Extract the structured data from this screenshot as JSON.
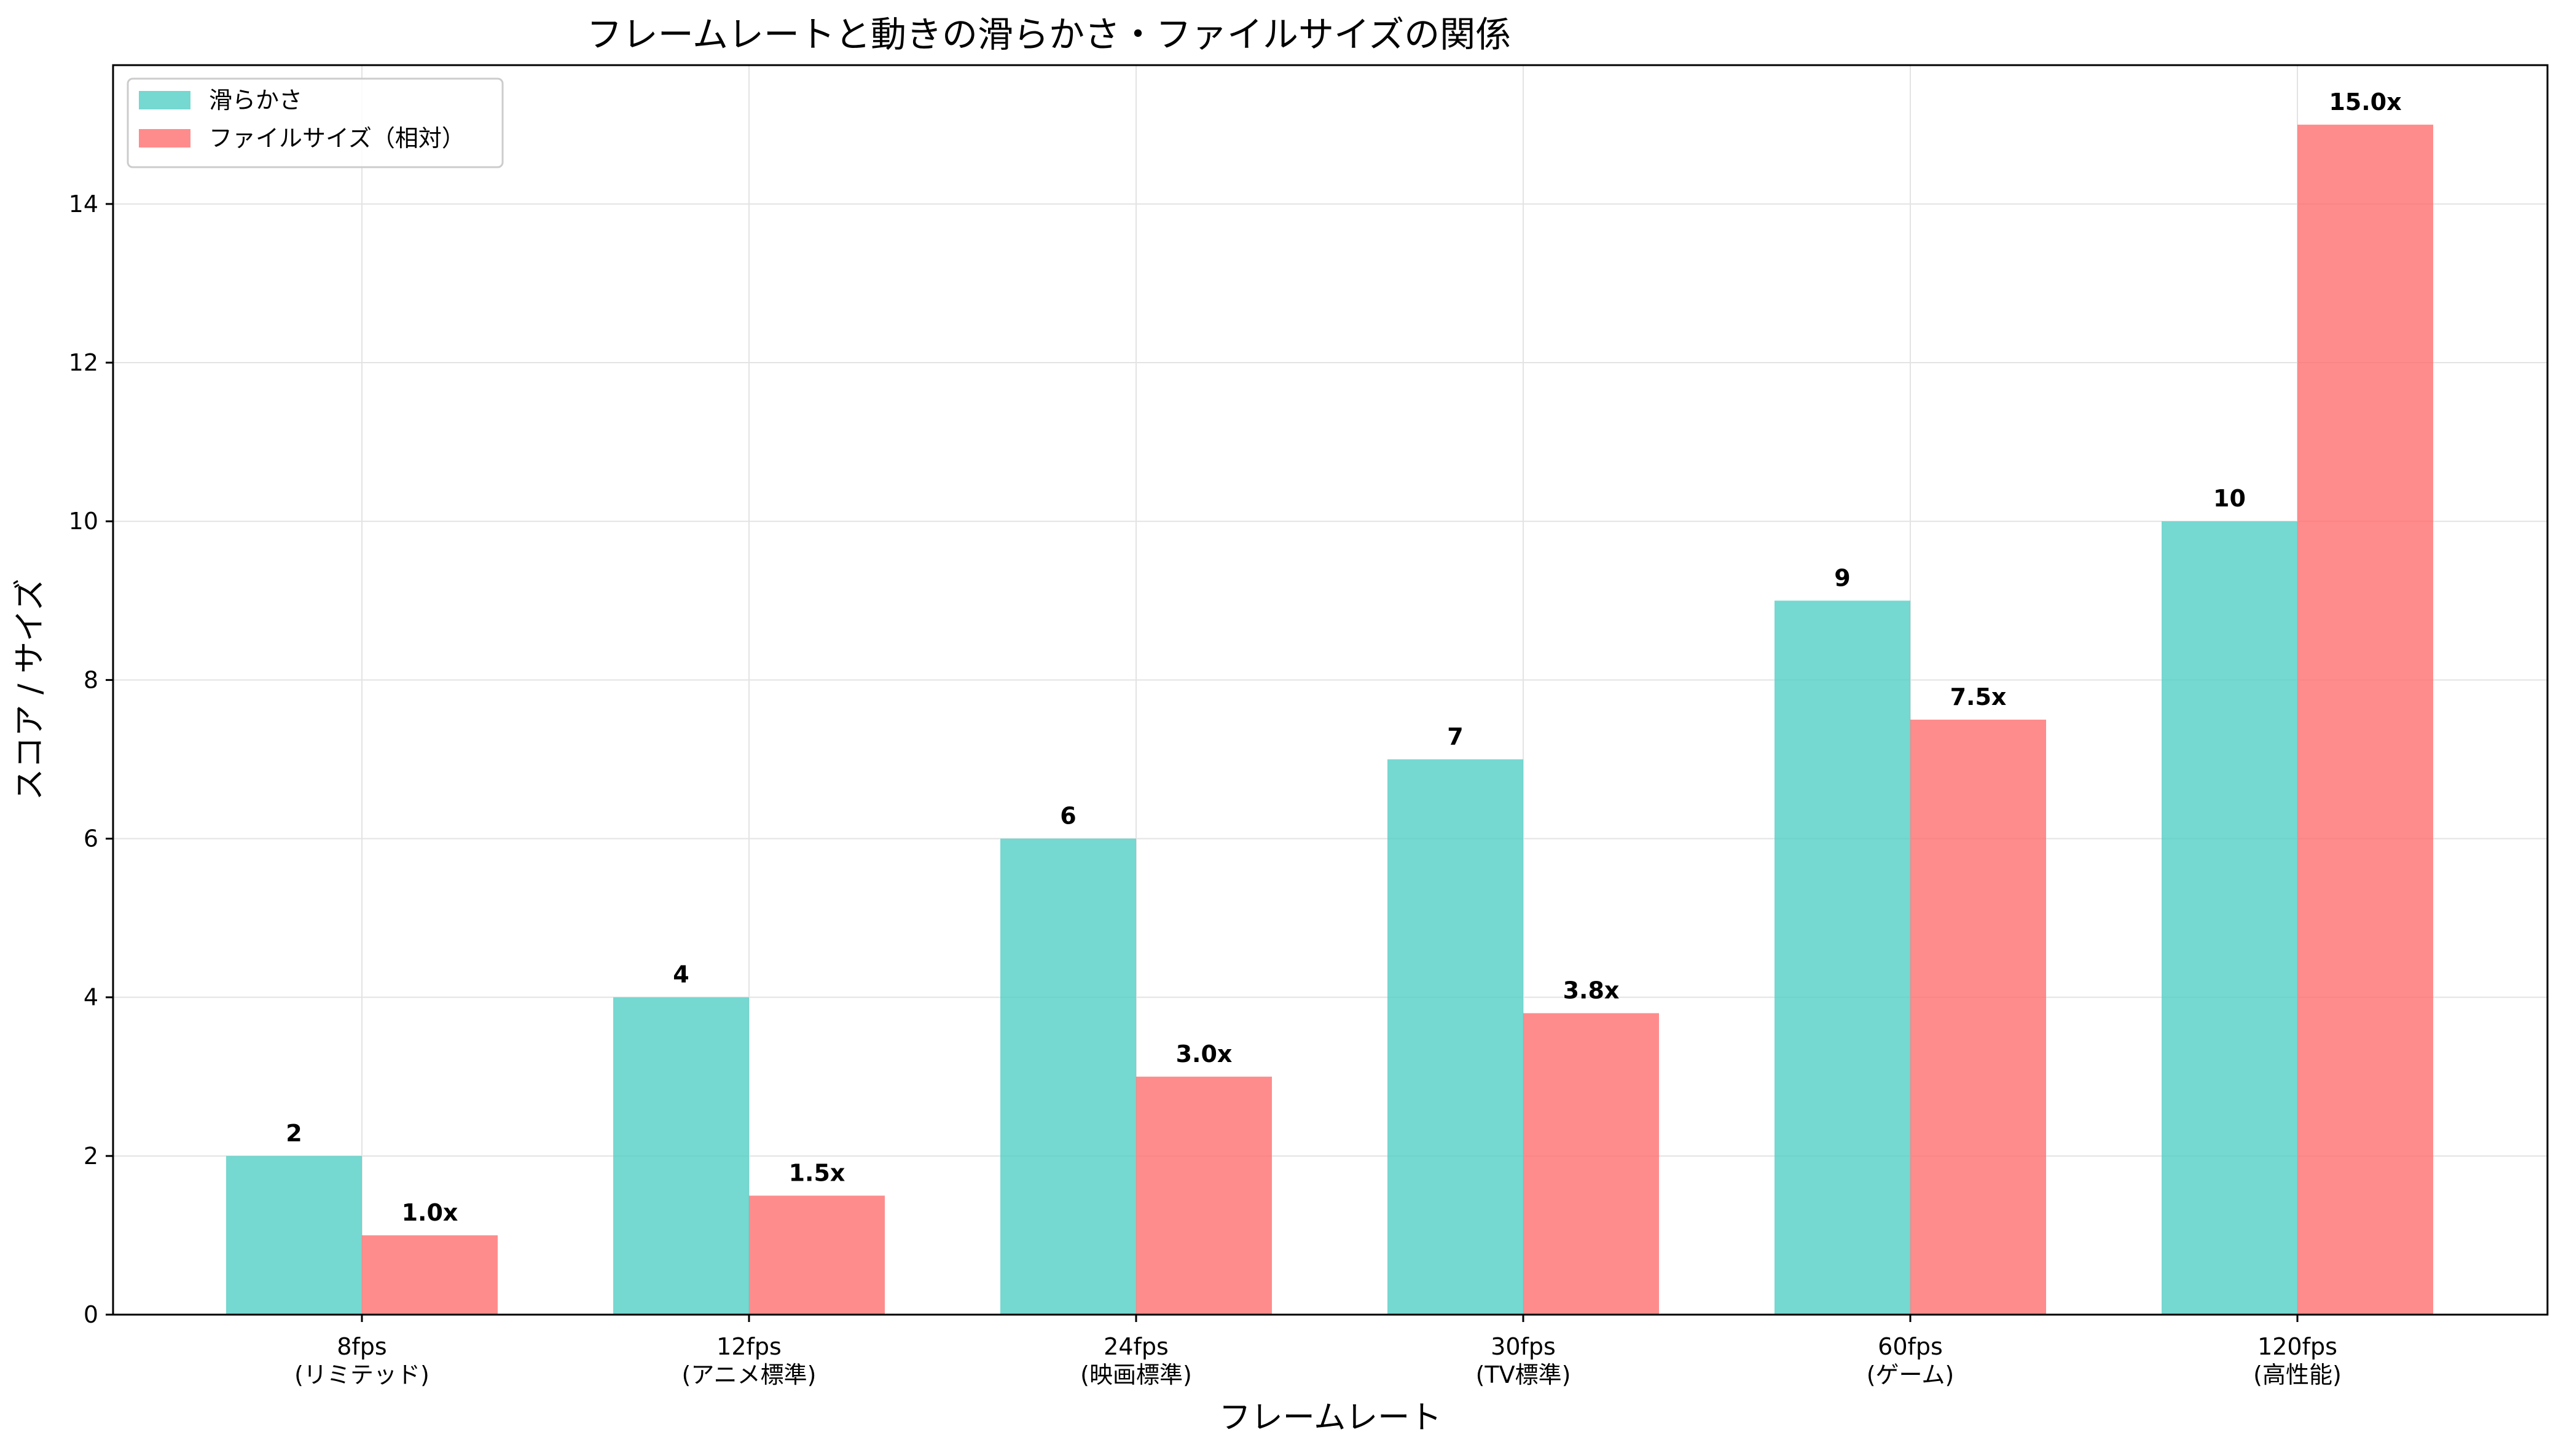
{
  "chart_data": {
    "type": "bar",
    "title": "フレームレートと動きの滑らかさ・ファイルサイズの関係",
    "xlabel": "フレームレート",
    "ylabel": "スコア / サイズ",
    "categories": [
      [
        "8fps",
        "(リミテッド)"
      ],
      [
        "12fps",
        "(アニメ標準)"
      ],
      [
        "24fps",
        "(映画標準)"
      ],
      [
        "30fps",
        "(TV標準)"
      ],
      [
        "60fps",
        "(ゲーム)"
      ],
      [
        "120fps",
        "(高性能)"
      ]
    ],
    "series": [
      {
        "name": "滑らかさ",
        "color": "#4ecdc4",
        "values": [
          2,
          4,
          6,
          7,
          9,
          10
        ],
        "labels": [
          "2",
          "4",
          "6",
          "7",
          "9",
          "10"
        ]
      },
      {
        "name": "ファイルサイズ（相対）",
        "color": "#ff6b6b",
        "values": [
          1.0,
          1.5,
          3.0,
          3.8,
          7.5,
          15.0
        ],
        "labels": [
          "1.0x",
          "1.5x",
          "3.0x",
          "3.8x",
          "7.5x",
          "15.0x"
        ]
      }
    ],
    "ylim": [
      0,
      15.75
    ],
    "yticks": [
      0,
      2,
      4,
      6,
      8,
      10,
      12,
      14
    ],
    "grid": true,
    "legend_position": "upper-left"
  }
}
